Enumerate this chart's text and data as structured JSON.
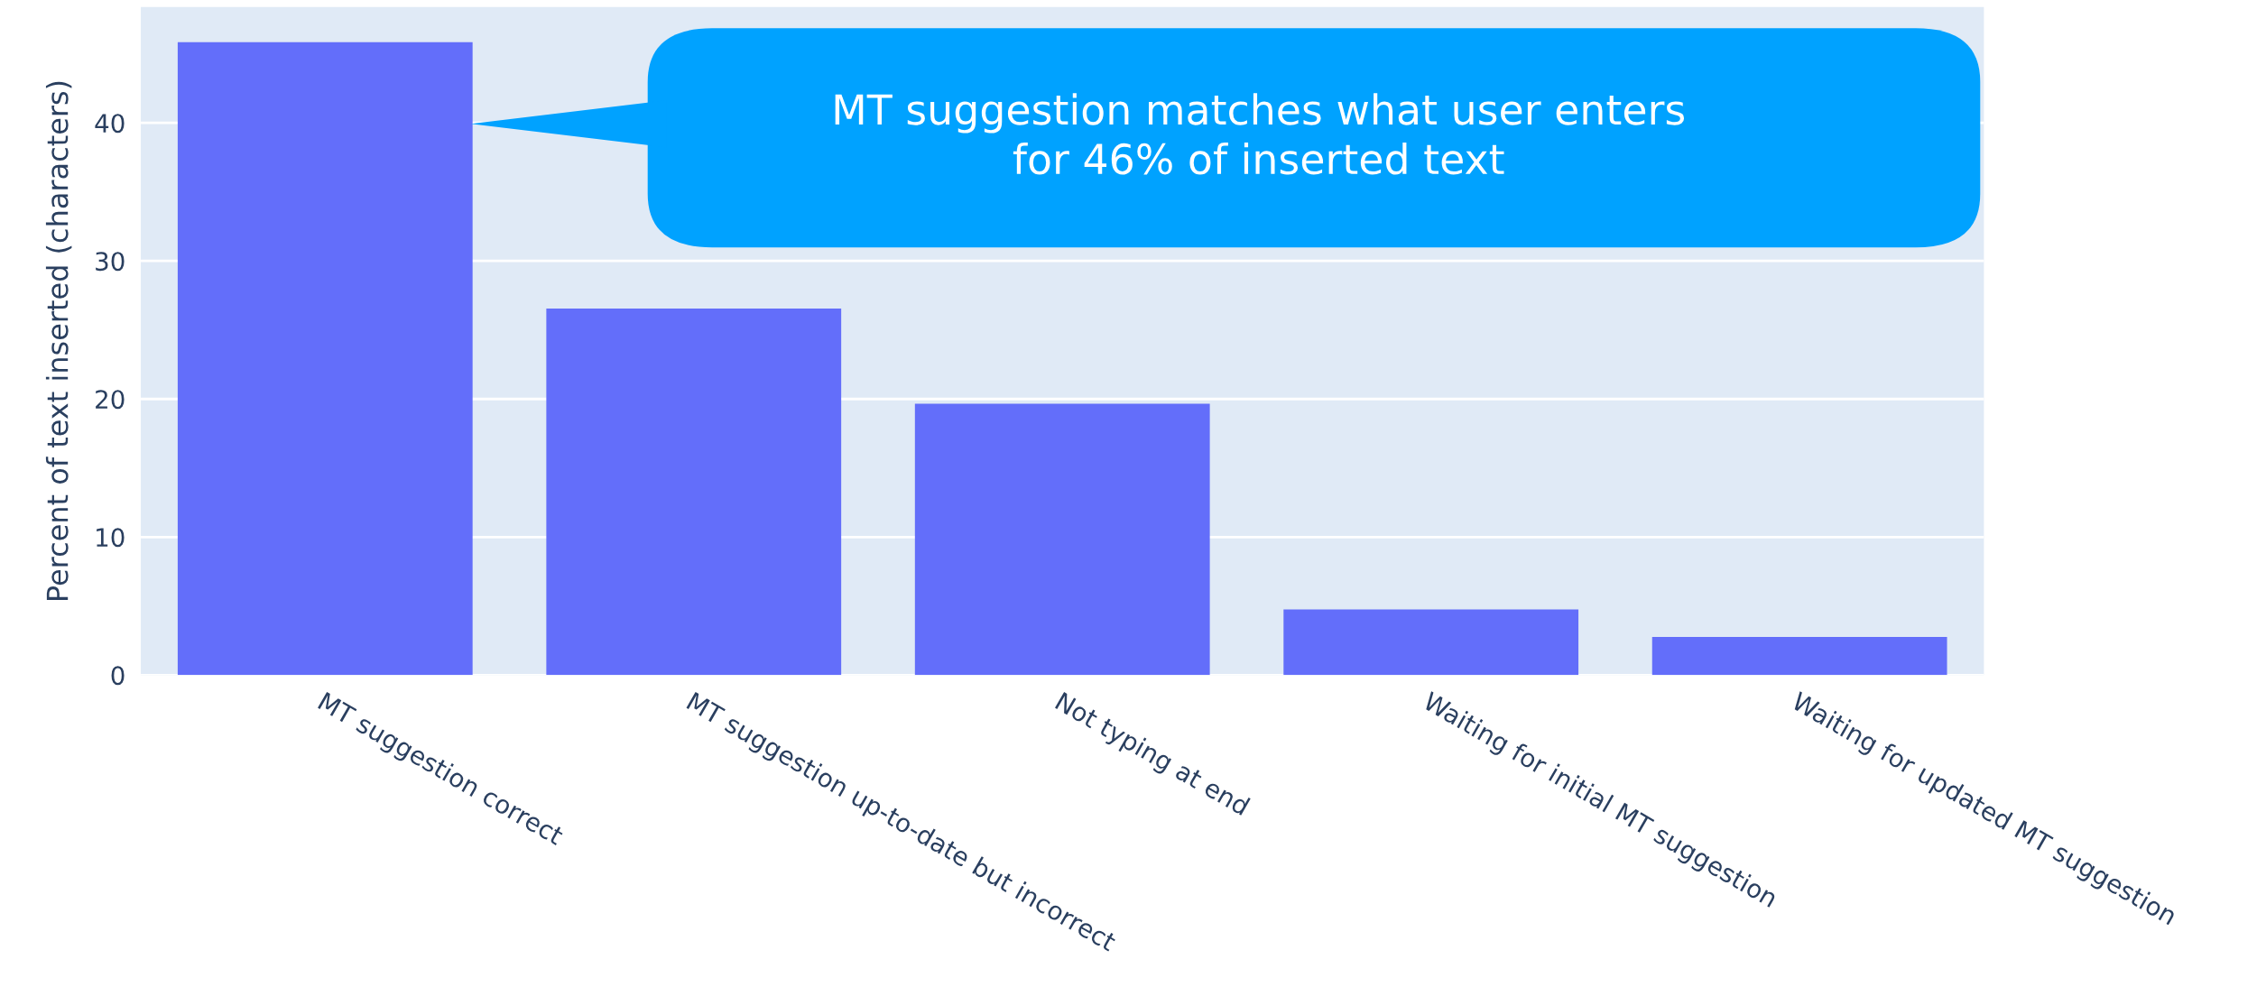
{
  "chart_data": {
    "type": "bar",
    "ylabel": "Percent of text inserted (characters)",
    "categories": [
      "MT suggestion correct",
      "MT suggestion up-to-date but incorrect",
      "Not typing at end",
      "Waiting for initial MT suggestion",
      "Waiting for updated MT suggestion"
    ],
    "values": [
      45.85,
      26.55,
      19.65,
      4.75,
      2.77
    ],
    "color": "#636efa",
    "ylim": [
      0,
      48.4
    ],
    "yticks": [
      0,
      10,
      20,
      30,
      40
    ],
    "grid": "y",
    "legend": false,
    "annotations": [
      "MT suggestion matches what user enters\nfor 46% of inserted text"
    ]
  }
}
